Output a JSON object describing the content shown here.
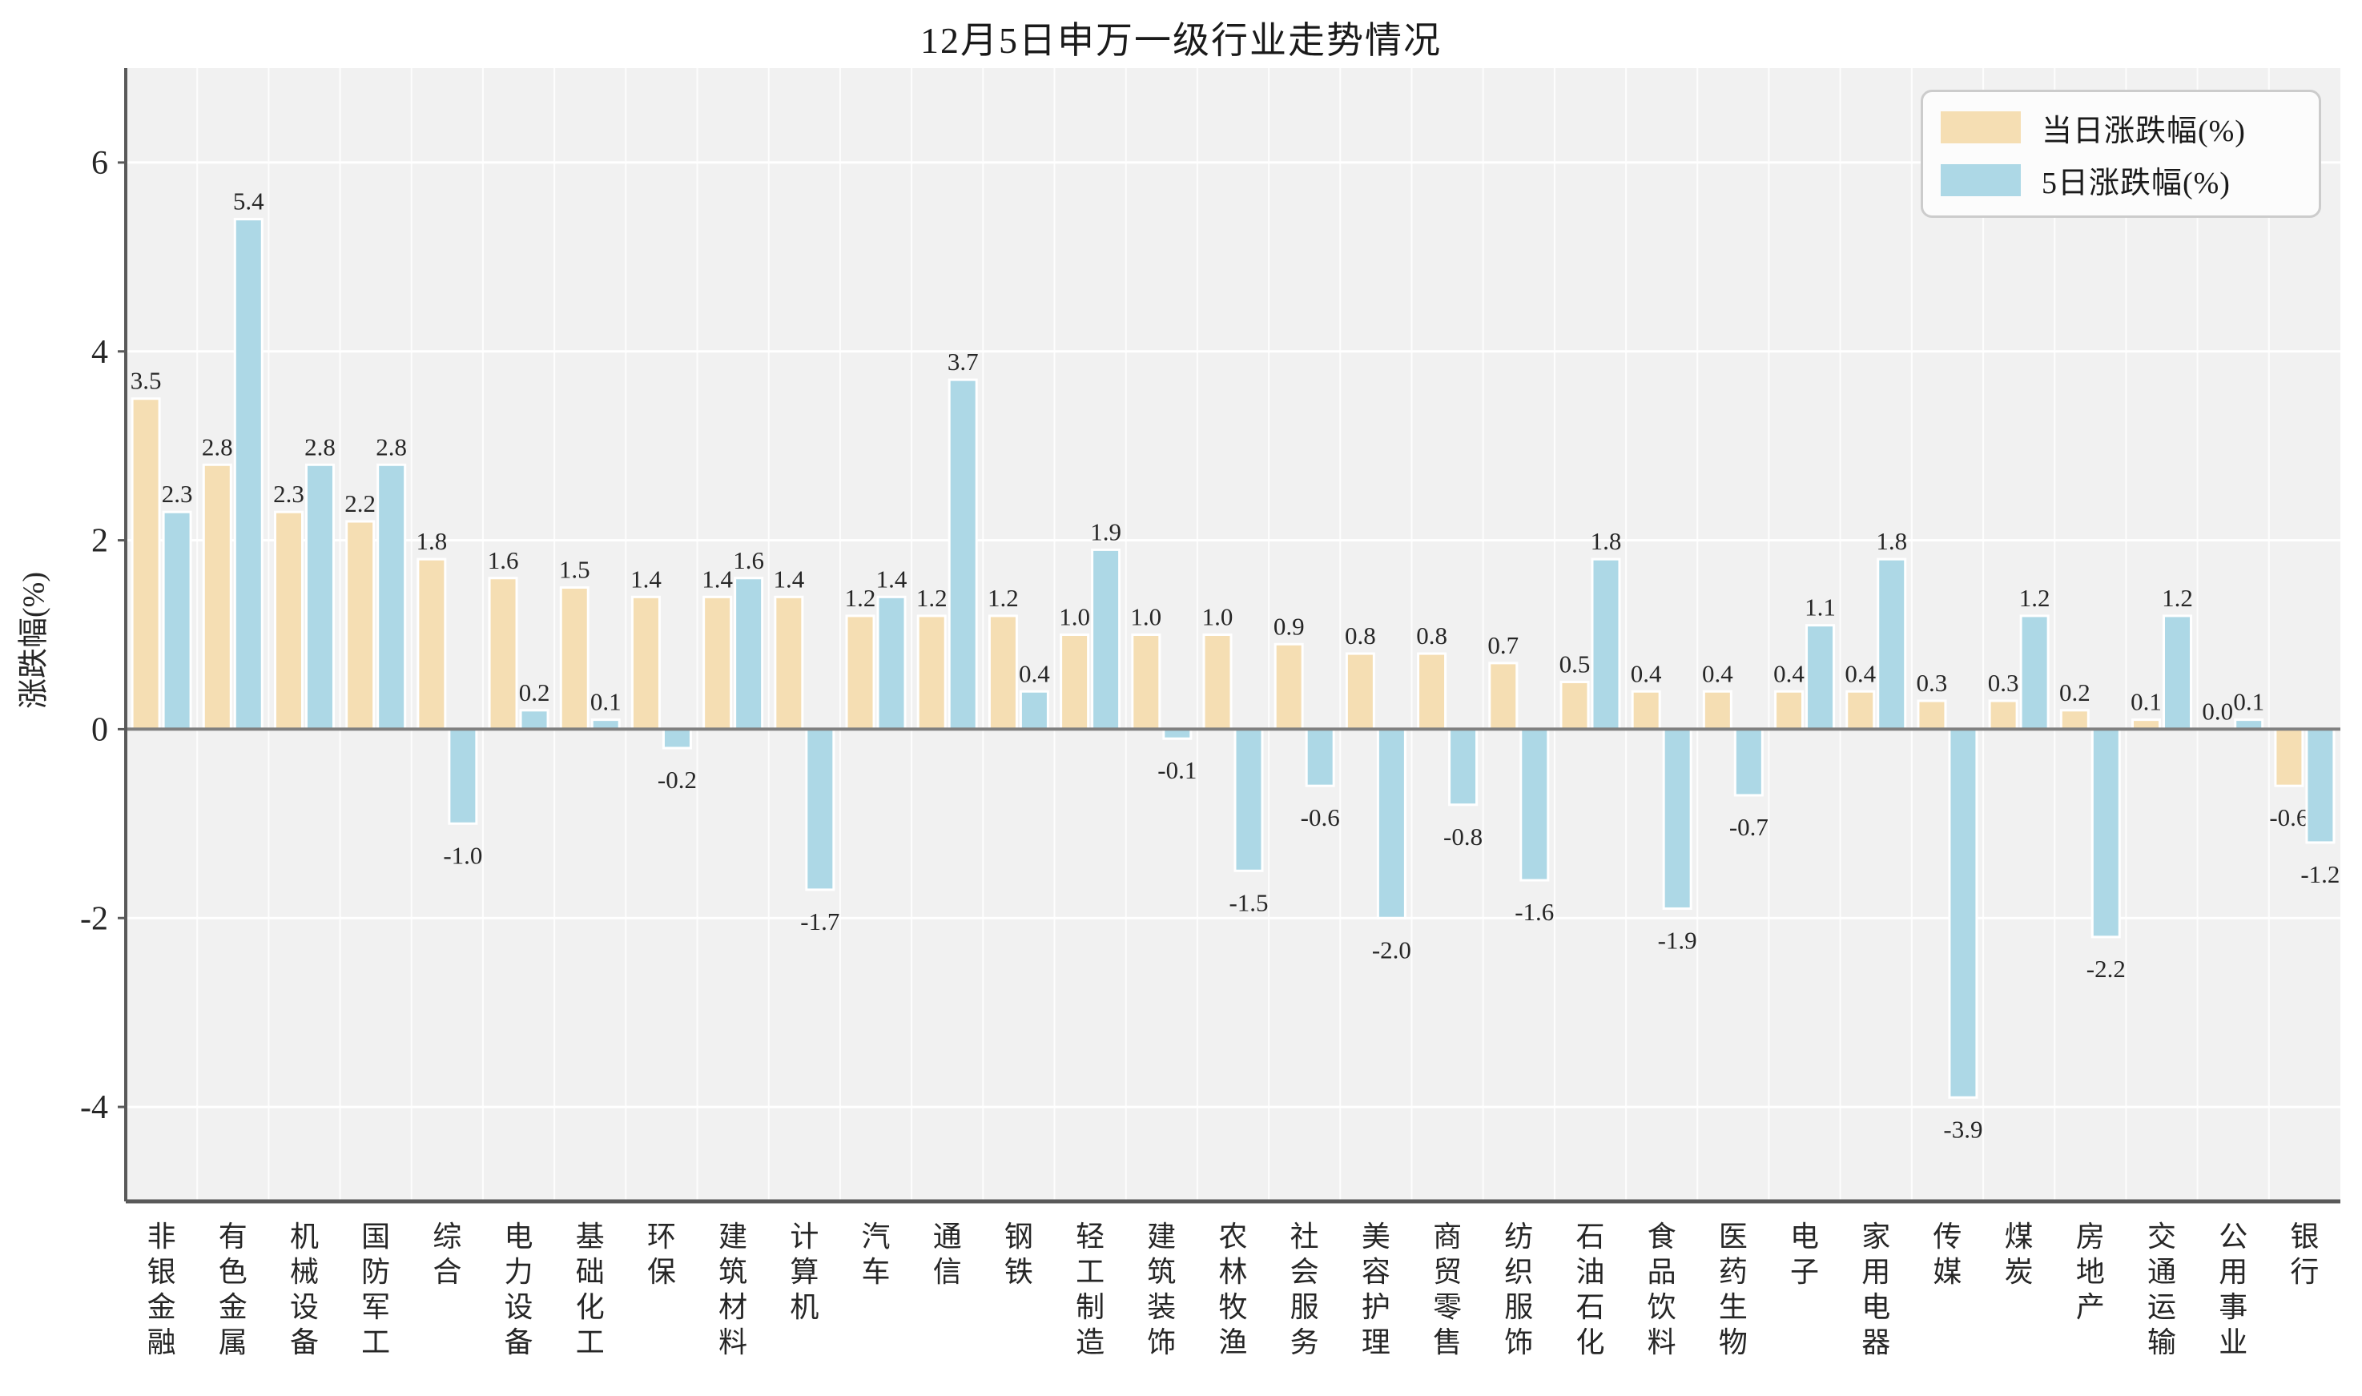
{
  "title": "12月5日申万一级行业走势情况",
  "y_axis_label": "涨跌幅(%)",
  "legend": {
    "daily_label": "当日涨跌幅(%)",
    "five_day_label": "5日涨跌幅(%)"
  },
  "colors": {
    "daily_bar": "#F5DEB3",
    "five_day_bar": "#ADD8E6",
    "plot_background": "#F1F1F1",
    "gridline": "#FFFFFF",
    "zero_line": "#808080",
    "axis_spine": "#595959",
    "text": "#262626"
  },
  "chart_data": {
    "type": "bar",
    "title": "12月5日申万一级行业走势情况",
    "xlabel": "",
    "ylabel": "涨跌幅(%)",
    "ylim": [
      -5,
      7
    ],
    "yticks": [
      6,
      4,
      2,
      0,
      -2,
      -4
    ],
    "grid": true,
    "legend_position": "upper right",
    "categories": [
      "非银金融",
      "有色金属",
      "机械设备",
      "国防军工",
      "综合",
      "电力设备",
      "基础化工",
      "环保",
      "建筑材料",
      "计算机",
      "汽车",
      "通信",
      "钢铁",
      "轻工制造",
      "建筑装饰",
      "农林牧渔",
      "社会服务",
      "美容护理",
      "商贸零售",
      "纺织服饰",
      "石油石化",
      "食品饮料",
      "医药生物",
      "电子",
      "家用电器",
      "传媒",
      "煤炭",
      "房地产",
      "交通运输",
      "公用事业",
      "银行"
    ],
    "series": [
      {
        "name": "当日涨跌幅(%)",
        "color": "#F5DEB3",
        "values": [
          3.5,
          2.8,
          2.3,
          2.2,
          1.8,
          1.6,
          1.5,
          1.4,
          1.4,
          1.4,
          1.2,
          1.2,
          1.2,
          1.0,
          1.0,
          1.0,
          0.9,
          0.8,
          0.8,
          0.7,
          0.5,
          0.4,
          0.4,
          0.4,
          0.4,
          0.3,
          0.3,
          0.2,
          0.1,
          0.0,
          -0.6
        ]
      },
      {
        "name": "5日涨跌幅(%)",
        "color": "#ADD8E6",
        "values": [
          2.3,
          5.4,
          2.8,
          2.8,
          -1.0,
          0.2,
          0.1,
          -0.2,
          1.6,
          -1.7,
          1.4,
          3.7,
          0.4,
          1.9,
          -0.1,
          -1.5,
          -0.6,
          -2.0,
          -0.8,
          -1.6,
          1.8,
          -1.9,
          -0.7,
          1.1,
          1.8,
          -3.9,
          1.2,
          -2.2,
          1.2,
          0.1,
          -1.2
        ]
      }
    ]
  }
}
